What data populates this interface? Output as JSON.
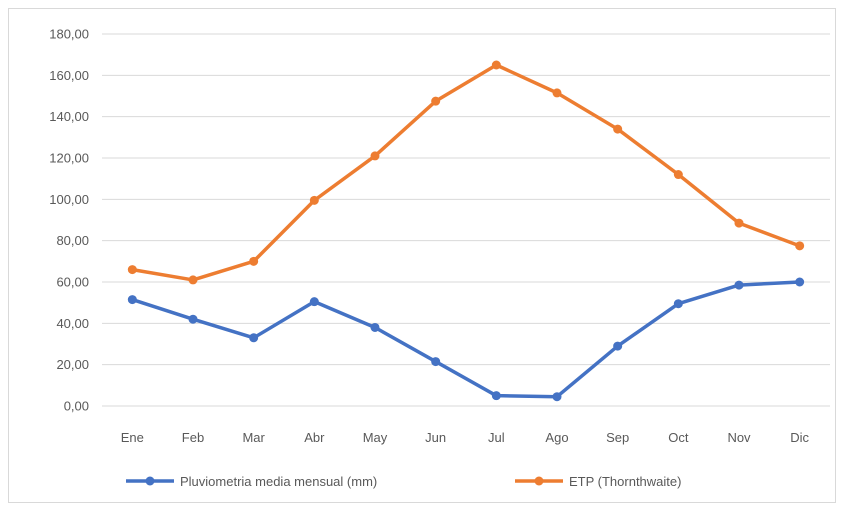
{
  "chart_data": {
    "type": "line",
    "categories": [
      "Ene",
      "Feb",
      "Mar",
      "Abr",
      "May",
      "Jun",
      "Jul",
      "Ago",
      "Sep",
      "Oct",
      "Nov",
      "Dic"
    ],
    "series": [
      {
        "name": "Pluviometria media mensual (mm)",
        "color": "#4472c4",
        "values": [
          51.5,
          42.0,
          33.0,
          50.5,
          38.0,
          21.5,
          5.0,
          4.5,
          29.0,
          49.5,
          58.5,
          60.0
        ]
      },
      {
        "name": "ETP (Thornthwaite)",
        "color": "#ed7d31",
        "values": [
          66.0,
          61.0,
          70.0,
          99.5,
          121.0,
          147.5,
          165.0,
          151.5,
          134.0,
          112.0,
          88.5,
          77.5
        ]
      }
    ],
    "yticks": [
      "0,00",
      "20,00",
      "40,00",
      "60,00",
      "80,00",
      "100,00",
      "120,00",
      "140,00",
      "160,00",
      "180,00"
    ],
    "ylim": [
      0,
      180
    ],
    "grid": true,
    "legend": "bottom",
    "title": "",
    "xlabel": "",
    "ylabel": ""
  }
}
